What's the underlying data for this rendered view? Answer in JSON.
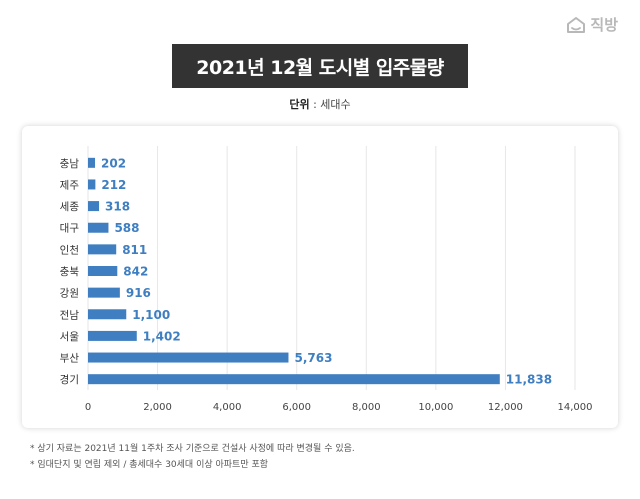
{
  "brand": {
    "name": "직방",
    "icon": "house-icon",
    "color": "#b8b8b8"
  },
  "header": {
    "title": "2021년 12월 도시별 입주물량"
  },
  "unit": {
    "label": "단위",
    "separator": " : ",
    "value": "세대수"
  },
  "colors": {
    "bar": "#3f7fc1",
    "label": "#3f7fc1",
    "title_bg": "#333333"
  },
  "chart_data": {
    "type": "bar",
    "orientation": "horizontal",
    "categories": [
      "충남",
      "제주",
      "세종",
      "대구",
      "인천",
      "충북",
      "강원",
      "전남",
      "서울",
      "부산",
      "경기"
    ],
    "values": [
      202,
      212,
      318,
      588,
      811,
      842,
      916,
      1100,
      1402,
      5763,
      11838
    ],
    "value_labels": [
      "202",
      "212",
      "318",
      "588",
      "811",
      "842",
      "916",
      "1,100",
      "1,402",
      "5,763",
      "11,838"
    ],
    "xlim": [
      0,
      14000
    ],
    "xticks": [
      0,
      2000,
      4000,
      6000,
      8000,
      10000,
      12000,
      14000
    ],
    "xtick_labels": [
      "0",
      "2,000",
      "4,000",
      "6,000",
      "8,000",
      "10,000",
      "12,000",
      "14,000"
    ],
    "grid": true,
    "title": "2021년 12월 도시별 입주물량"
  },
  "footnotes": [
    "* 상기 자료는 2021년 11월 1주차 조사 기준으로 건설사 사정에 따라 변경될 수 있음.",
    "* 임대단지 및 연립 제외 / 총세대수 30세대 이상 아파트만 포함"
  ]
}
